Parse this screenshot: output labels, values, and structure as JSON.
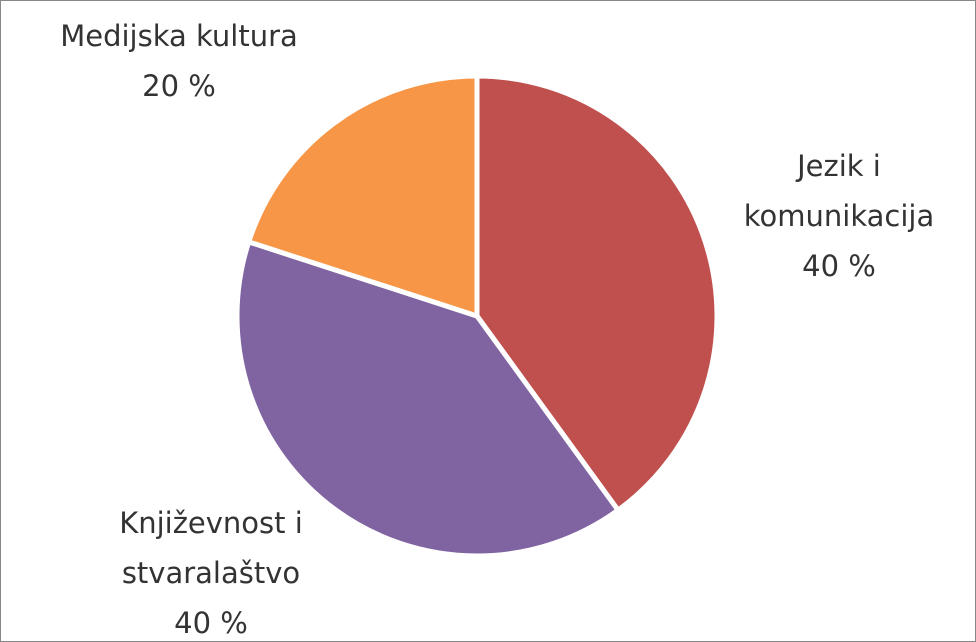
{
  "chart_data": {
    "type": "pie",
    "categories": [
      "Jezik i komunikacija",
      "Književnost i stvaralaštvo",
      "Medijska kultura"
    ],
    "values": [
      40,
      40,
      20
    ],
    "value_labels": [
      "40 %",
      "40 %",
      "20 %"
    ],
    "colors": [
      "#c0504d",
      "#8064a2",
      "#f79646"
    ]
  }
}
